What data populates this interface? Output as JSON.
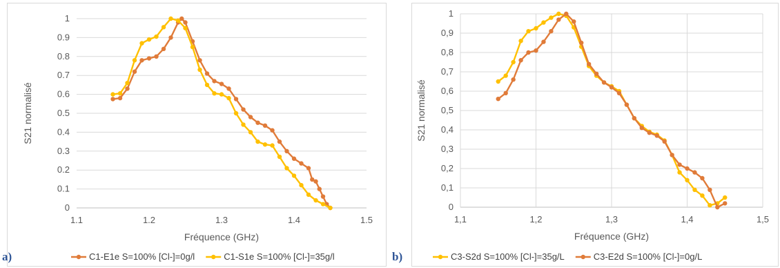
{
  "chart_data": [
    {
      "type": "scatter",
      "panel_label": "a)",
      "xlabel": "Fréquence (GHz)",
      "ylabel": "S21 normalisé",
      "xlim": [
        1.1,
        1.5
      ],
      "ylim": [
        0,
        1
      ],
      "x_ticks": [
        "1.1",
        "1.2",
        "1.3",
        "1.4",
        "1.5"
      ],
      "y_ticks": [
        "0",
        "0.1",
        "0.2",
        "0.3",
        "0.4",
        "0.5",
        "0.6",
        "0.7",
        "0.8",
        "0.9",
        "1"
      ],
      "grid": "horizontal",
      "legend_position": "bottom",
      "series": [
        {
          "name": "C1-E1e S=100% [Cl-]=0g/l",
          "color": "#e07b39",
          "points": [
            [
              1.15,
              0.575
            ],
            [
              1.16,
              0.58
            ],
            [
              1.17,
              0.63
            ],
            [
              1.18,
              0.72
            ],
            [
              1.19,
              0.78
            ],
            [
              1.2,
              0.79
            ],
            [
              1.21,
              0.8
            ],
            [
              1.22,
              0.84
            ],
            [
              1.23,
              0.9
            ],
            [
              1.24,
              0.98
            ],
            [
              1.245,
              1.0
            ],
            [
              1.25,
              0.98
            ],
            [
              1.26,
              0.88
            ],
            [
              1.27,
              0.78
            ],
            [
              1.28,
              0.71
            ],
            [
              1.29,
              0.67
            ],
            [
              1.3,
              0.655
            ],
            [
              1.31,
              0.63
            ],
            [
              1.32,
              0.575
            ],
            [
              1.33,
              0.52
            ],
            [
              1.34,
              0.48
            ],
            [
              1.35,
              0.45
            ],
            [
              1.36,
              0.435
            ],
            [
              1.37,
              0.41
            ],
            [
              1.38,
              0.35
            ],
            [
              1.39,
              0.3
            ],
            [
              1.4,
              0.26
            ],
            [
              1.41,
              0.235
            ],
            [
              1.42,
              0.21
            ],
            [
              1.425,
              0.15
            ],
            [
              1.43,
              0.14
            ],
            [
              1.435,
              0.1
            ],
            [
              1.44,
              0.06
            ],
            [
              1.445,
              0.02
            ],
            [
              1.45,
              0.0
            ]
          ]
        },
        {
          "name": "C1-S1e S=100% [Cl-]=35g/l",
          "color": "#ffc000",
          "points": [
            [
              1.15,
              0.6
            ],
            [
              1.16,
              0.605
            ],
            [
              1.17,
              0.66
            ],
            [
              1.18,
              0.78
            ],
            [
              1.19,
              0.87
            ],
            [
              1.2,
              0.89
            ],
            [
              1.21,
              0.905
            ],
            [
              1.22,
              0.955
            ],
            [
              1.23,
              1.0
            ],
            [
              1.24,
              0.99
            ],
            [
              1.25,
              0.95
            ],
            [
              1.26,
              0.85
            ],
            [
              1.27,
              0.73
            ],
            [
              1.28,
              0.65
            ],
            [
              1.29,
              0.605
            ],
            [
              1.3,
              0.6
            ],
            [
              1.31,
              0.58
            ],
            [
              1.32,
              0.5
            ],
            [
              1.33,
              0.44
            ],
            [
              1.34,
              0.4
            ],
            [
              1.35,
              0.35
            ],
            [
              1.36,
              0.335
            ],
            [
              1.37,
              0.33
            ],
            [
              1.38,
              0.27
            ],
            [
              1.39,
              0.21
            ],
            [
              1.4,
              0.17
            ],
            [
              1.41,
              0.12
            ],
            [
              1.42,
              0.07
            ],
            [
              1.43,
              0.04
            ],
            [
              1.44,
              0.02
            ],
            [
              1.45,
              0.0
            ]
          ]
        }
      ]
    },
    {
      "type": "scatter",
      "panel_label": "b)",
      "xlabel": "Fréquence (GHz)",
      "ylabel": "S21 normalisé",
      "xlim": [
        1.1,
        1.5
      ],
      "ylim": [
        0,
        1
      ],
      "x_ticks": [
        "1,1",
        "1,2",
        "1,3",
        "1,4",
        "1,5"
      ],
      "y_ticks": [
        "0",
        "0,1",
        "0,2",
        "0,3",
        "0,4",
        "0,5",
        "0,6",
        "0,7",
        "0,8",
        "0,9",
        "1"
      ],
      "grid": "both",
      "legend_position": "bottom",
      "series": [
        {
          "name": "C3-S2d S=100% [Cl-]=35g/L",
          "color": "#ffc000",
          "points": [
            [
              1.15,
              0.65
            ],
            [
              1.16,
              0.68
            ],
            [
              1.17,
              0.75
            ],
            [
              1.18,
              0.86
            ],
            [
              1.19,
              0.91
            ],
            [
              1.2,
              0.925
            ],
            [
              1.21,
              0.955
            ],
            [
              1.22,
              0.98
            ],
            [
              1.23,
              1.0
            ],
            [
              1.24,
              0.99
            ],
            [
              1.25,
              0.93
            ],
            [
              1.26,
              0.83
            ],
            [
              1.27,
              0.73
            ],
            [
              1.28,
              0.68
            ],
            [
              1.29,
              0.645
            ],
            [
              1.3,
              0.625
            ],
            [
              1.31,
              0.6
            ],
            [
              1.32,
              0.53
            ],
            [
              1.33,
              0.46
            ],
            [
              1.34,
              0.42
            ],
            [
              1.35,
              0.39
            ],
            [
              1.36,
              0.375
            ],
            [
              1.37,
              0.345
            ],
            [
              1.38,
              0.27
            ],
            [
              1.39,
              0.18
            ],
            [
              1.4,
              0.14
            ],
            [
              1.41,
              0.09
            ],
            [
              1.42,
              0.06
            ],
            [
              1.43,
              0.01
            ],
            [
              1.44,
              0.02
            ],
            [
              1.45,
              0.05
            ]
          ]
        },
        {
          "name": "C3-E2d S=100% [Cl-]=0g/L",
          "color": "#e07b39",
          "points": [
            [
              1.15,
              0.56
            ],
            [
              1.16,
              0.59
            ],
            [
              1.17,
              0.66
            ],
            [
              1.18,
              0.76
            ],
            [
              1.19,
              0.8
            ],
            [
              1.2,
              0.81
            ],
            [
              1.21,
              0.855
            ],
            [
              1.22,
              0.91
            ],
            [
              1.23,
              0.97
            ],
            [
              1.24,
              1.0
            ],
            [
              1.25,
              0.96
            ],
            [
              1.26,
              0.85
            ],
            [
              1.27,
              0.74
            ],
            [
              1.28,
              0.69
            ],
            [
              1.29,
              0.645
            ],
            [
              1.3,
              0.62
            ],
            [
              1.31,
              0.59
            ],
            [
              1.32,
              0.53
            ],
            [
              1.33,
              0.46
            ],
            [
              1.34,
              0.41
            ],
            [
              1.35,
              0.385
            ],
            [
              1.36,
              0.37
            ],
            [
              1.37,
              0.34
            ],
            [
              1.38,
              0.27
            ],
            [
              1.39,
              0.22
            ],
            [
              1.4,
              0.2
            ],
            [
              1.41,
              0.18
            ],
            [
              1.42,
              0.15
            ],
            [
              1.43,
              0.09
            ],
            [
              1.44,
              0.0
            ],
            [
              1.45,
              0.02
            ]
          ]
        }
      ]
    }
  ]
}
